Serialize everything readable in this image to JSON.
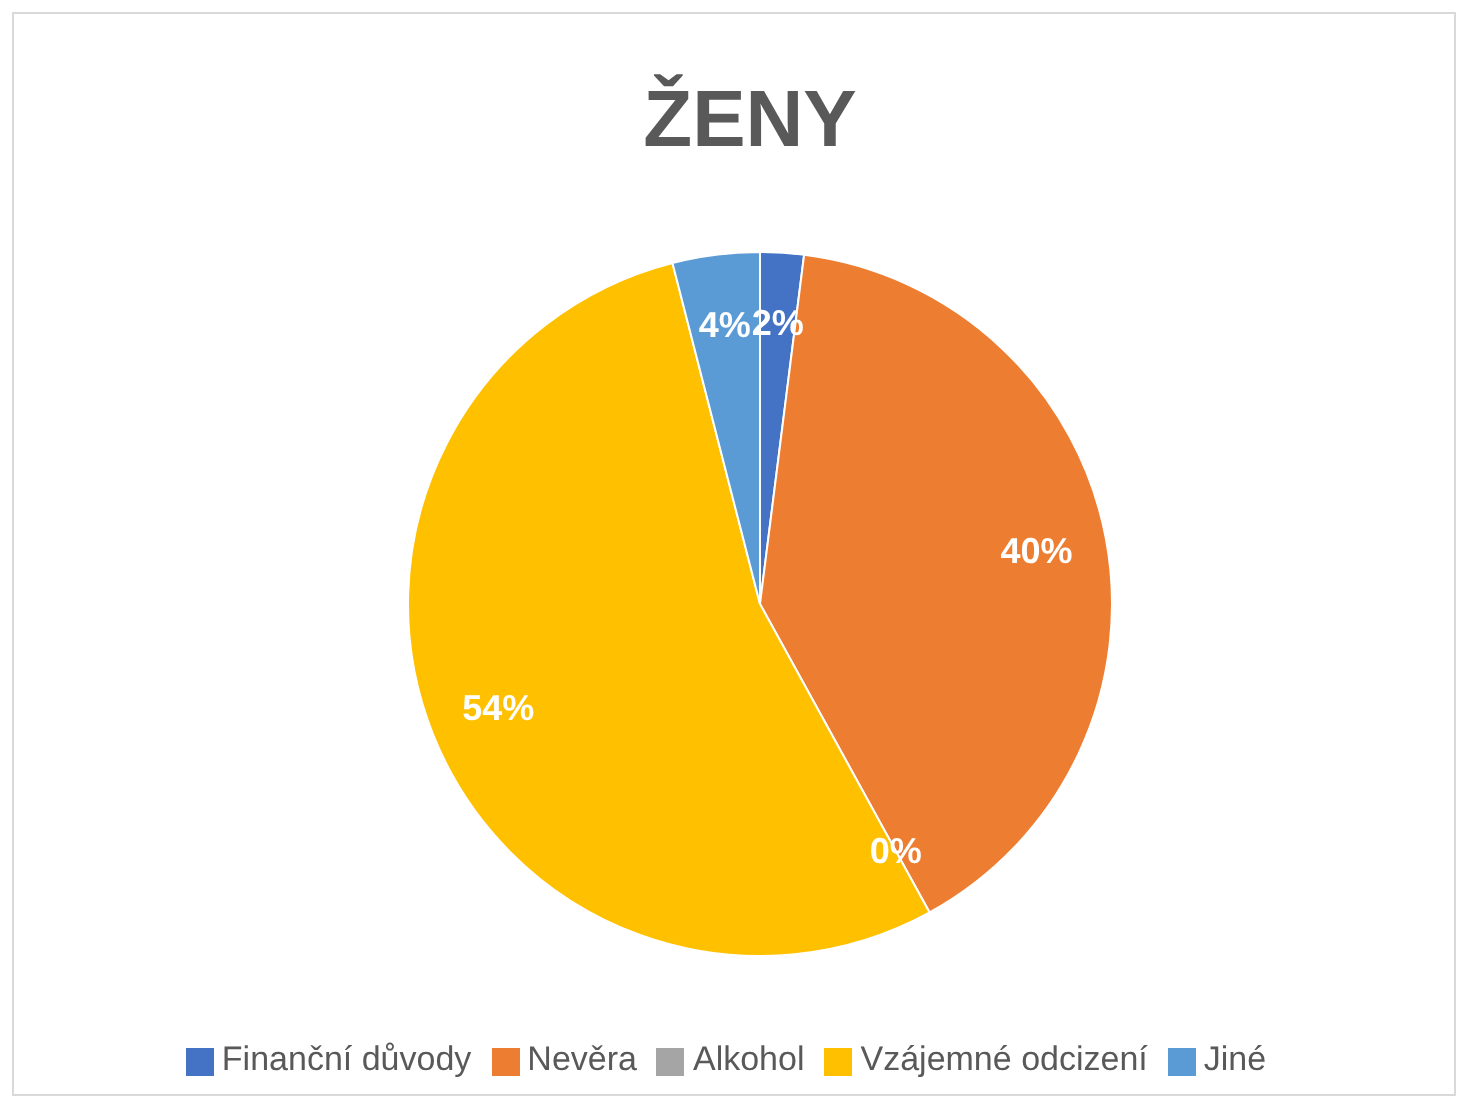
{
  "chart_data": {
    "type": "pie",
    "title": "ŽENY",
    "categories": [
      "Finanční důvody",
      "Nevěra",
      "Alkohol",
      "Vzájemné odcizení",
      "Jiné"
    ],
    "values": [
      2,
      40,
      0,
      54,
      4
    ],
    "value_labels": [
      "2%",
      "40%",
      "0%",
      "54%",
      "4%"
    ],
    "colors": [
      "#4472c4",
      "#ed7d31",
      "#a5a5a5",
      "#ffc000",
      "#5b9bd5"
    ],
    "legend": "bottom"
  }
}
